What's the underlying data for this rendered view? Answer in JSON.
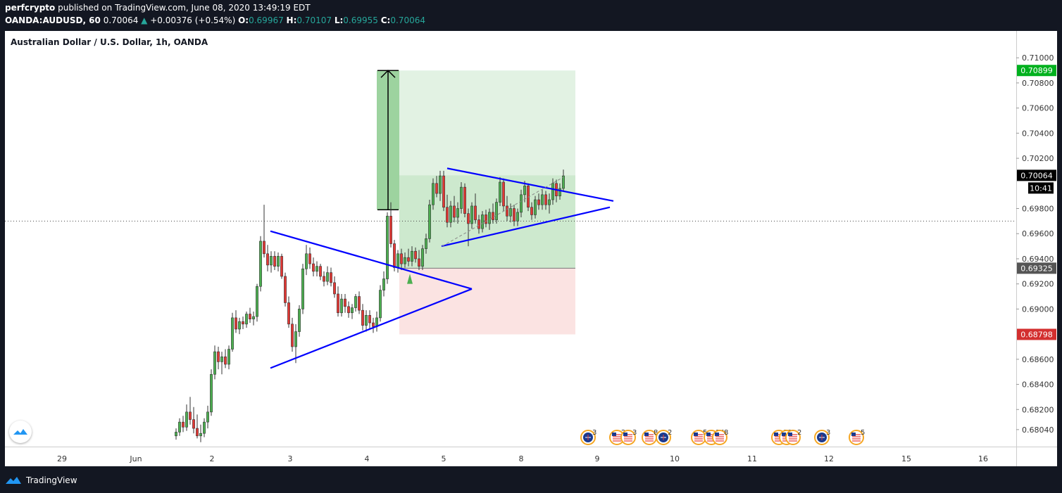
{
  "header": {
    "author": "perfcrypto",
    "published_text": "published on TradingView.com, June 08, 2020 13:49:19 EDT",
    "symbol": "OANDA:AUDUSD, 60",
    "last": "0.70064",
    "change": "+0.00376 (+0.54%)",
    "o_label": "O:",
    "o_value": "0.69967",
    "h_label": "H:",
    "h_value": "0.70107",
    "l_label": "L:",
    "l_value": "0.69955",
    "c_label": "C:",
    "c_value": "0.70064"
  },
  "footer": {
    "brand": "TradingView"
  },
  "colors": {
    "up": "#26a69a",
    "bull_candle": "#4caf50",
    "bear_candle": "#e53935",
    "trendline": "#0000ff",
    "target_label": "#00b11e",
    "stop_label": "#d32f2f",
    "entry_label": "#555555",
    "last_label": "#000000"
  },
  "chart_data": {
    "type": "candlestick",
    "title": "Australian Dollar / U.S. Dollar, 1h, OANDA",
    "x_ticks": [
      "29",
      "Jun",
      "2",
      "3",
      "4",
      "5",
      "8",
      "9",
      "10",
      "11",
      "12",
      "15",
      "16"
    ],
    "y_ticks": [
      "0.71000",
      "0.70800",
      "0.70600",
      "0.70400",
      "0.70200",
      "0.69800",
      "0.69600",
      "0.69400",
      "0.69200",
      "0.69000",
      "0.68600",
      "0.68400",
      "0.68200",
      "0.68040"
    ],
    "ylim": [
      0.68,
      0.7115
    ],
    "price_labels": {
      "target": "0.70899",
      "last": "0.70064",
      "countdown": "10:41",
      "entry": "0.69325",
      "stop": "0.68798"
    },
    "long_position": {
      "entry": 0.69325,
      "target": 0.70899,
      "stop": 0.68798
    },
    "candles": [
      {
        "o": 0.6799,
        "h": 0.6805,
        "l": 0.6796,
        "c": 0.6802
      },
      {
        "o": 0.6802,
        "h": 0.6813,
        "l": 0.6799,
        "c": 0.681
      },
      {
        "o": 0.681,
        "h": 0.6815,
        "l": 0.6802,
        "c": 0.6806
      },
      {
        "o": 0.6806,
        "h": 0.6824,
        "l": 0.6803,
        "c": 0.6818
      },
      {
        "o": 0.6818,
        "h": 0.683,
        "l": 0.6808,
        "c": 0.6812
      },
      {
        "o": 0.6812,
        "h": 0.6822,
        "l": 0.6801,
        "c": 0.6805
      },
      {
        "o": 0.6805,
        "h": 0.6816,
        "l": 0.6797,
        "c": 0.6799
      },
      {
        "o": 0.6799,
        "h": 0.6808,
        "l": 0.6794,
        "c": 0.6801
      },
      {
        "o": 0.6801,
        "h": 0.6813,
        "l": 0.6798,
        "c": 0.681
      },
      {
        "o": 0.681,
        "h": 0.6823,
        "l": 0.6805,
        "c": 0.6818
      },
      {
        "o": 0.6818,
        "h": 0.6852,
        "l": 0.6815,
        "c": 0.6848
      },
      {
        "o": 0.6848,
        "h": 0.6871,
        "l": 0.6844,
        "c": 0.6866
      },
      {
        "o": 0.6866,
        "h": 0.687,
        "l": 0.6852,
        "c": 0.6858
      },
      {
        "o": 0.6858,
        "h": 0.6866,
        "l": 0.6848,
        "c": 0.6862
      },
      {
        "o": 0.6862,
        "h": 0.6868,
        "l": 0.6853,
        "c": 0.6856
      },
      {
        "o": 0.6856,
        "h": 0.6871,
        "l": 0.6852,
        "c": 0.6868
      },
      {
        "o": 0.6868,
        "h": 0.6897,
        "l": 0.6866,
        "c": 0.6893
      },
      {
        "o": 0.6893,
        "h": 0.6899,
        "l": 0.6881,
        "c": 0.6884
      },
      {
        "o": 0.6884,
        "h": 0.6893,
        "l": 0.688,
        "c": 0.689
      },
      {
        "o": 0.689,
        "h": 0.6894,
        "l": 0.6884,
        "c": 0.6888
      },
      {
        "o": 0.6888,
        "h": 0.6898,
        "l": 0.6885,
        "c": 0.6896
      },
      {
        "o": 0.6896,
        "h": 0.6901,
        "l": 0.6889,
        "c": 0.6892
      },
      {
        "o": 0.6892,
        "h": 0.6898,
        "l": 0.6887,
        "c": 0.6894
      },
      {
        "o": 0.6894,
        "h": 0.692,
        "l": 0.689,
        "c": 0.6918
      },
      {
        "o": 0.6918,
        "h": 0.6958,
        "l": 0.6914,
        "c": 0.6954
      },
      {
        "o": 0.6954,
        "h": 0.6983,
        "l": 0.6941,
        "c": 0.6944
      },
      {
        "o": 0.6944,
        "h": 0.6951,
        "l": 0.693,
        "c": 0.6935
      },
      {
        "o": 0.6935,
        "h": 0.6946,
        "l": 0.6929,
        "c": 0.6942
      },
      {
        "o": 0.6942,
        "h": 0.6946,
        "l": 0.6931,
        "c": 0.6934
      },
      {
        "o": 0.6934,
        "h": 0.6945,
        "l": 0.693,
        "c": 0.6942
      },
      {
        "o": 0.6942,
        "h": 0.6944,
        "l": 0.6924,
        "c": 0.6926
      },
      {
        "o": 0.6926,
        "h": 0.6929,
        "l": 0.6902,
        "c": 0.6905
      },
      {
        "o": 0.6905,
        "h": 0.691,
        "l": 0.6885,
        "c": 0.6888
      },
      {
        "o": 0.6888,
        "h": 0.6893,
        "l": 0.6866,
        "c": 0.687
      },
      {
        "o": 0.687,
        "h": 0.6888,
        "l": 0.6857,
        "c": 0.6882
      },
      {
        "o": 0.6882,
        "h": 0.6903,
        "l": 0.6878,
        "c": 0.69
      },
      {
        "o": 0.69,
        "h": 0.6936,
        "l": 0.6896,
        "c": 0.6932
      },
      {
        "o": 0.6932,
        "h": 0.6951,
        "l": 0.6927,
        "c": 0.6944
      },
      {
        "o": 0.6944,
        "h": 0.6949,
        "l": 0.6932,
        "c": 0.6936
      },
      {
        "o": 0.6936,
        "h": 0.6941,
        "l": 0.6926,
        "c": 0.693
      },
      {
        "o": 0.693,
        "h": 0.6938,
        "l": 0.6926,
        "c": 0.6934
      },
      {
        "o": 0.6934,
        "h": 0.6936,
        "l": 0.6923,
        "c": 0.6926
      },
      {
        "o": 0.6926,
        "h": 0.693,
        "l": 0.6918,
        "c": 0.6922
      },
      {
        "o": 0.6922,
        "h": 0.6934,
        "l": 0.6919,
        "c": 0.6929
      },
      {
        "o": 0.6929,
        "h": 0.6933,
        "l": 0.6918,
        "c": 0.6921
      },
      {
        "o": 0.6921,
        "h": 0.6926,
        "l": 0.6909,
        "c": 0.6912
      },
      {
        "o": 0.6912,
        "h": 0.6918,
        "l": 0.6894,
        "c": 0.6897
      },
      {
        "o": 0.6897,
        "h": 0.6912,
        "l": 0.6894,
        "c": 0.6908
      },
      {
        "o": 0.6908,
        "h": 0.6912,
        "l": 0.6897,
        "c": 0.6902
      },
      {
        "o": 0.6902,
        "h": 0.6906,
        "l": 0.6893,
        "c": 0.6897
      },
      {
        "o": 0.6897,
        "h": 0.6904,
        "l": 0.6892,
        "c": 0.6901
      },
      {
        "o": 0.6901,
        "h": 0.6912,
        "l": 0.6898,
        "c": 0.691
      },
      {
        "o": 0.691,
        "h": 0.6914,
        "l": 0.6896,
        "c": 0.6899
      },
      {
        "o": 0.6899,
        "h": 0.6904,
        "l": 0.6883,
        "c": 0.6887
      },
      {
        "o": 0.6887,
        "h": 0.6899,
        "l": 0.6882,
        "c": 0.6895
      },
      {
        "o": 0.6895,
        "h": 0.6899,
        "l": 0.6884,
        "c": 0.6889
      },
      {
        "o": 0.6889,
        "h": 0.6893,
        "l": 0.6881,
        "c": 0.6886
      },
      {
        "o": 0.6886,
        "h": 0.6898,
        "l": 0.6882,
        "c": 0.6893
      },
      {
        "o": 0.6893,
        "h": 0.6919,
        "l": 0.689,
        "c": 0.6915
      },
      {
        "o": 0.6915,
        "h": 0.693,
        "l": 0.691,
        "c": 0.6924
      },
      {
        "o": 0.6924,
        "h": 0.6977,
        "l": 0.692,
        "c": 0.6974
      },
      {
        "o": 0.6974,
        "h": 0.6985,
        "l": 0.6949,
        "c": 0.6952
      },
      {
        "o": 0.6952,
        "h": 0.6955,
        "l": 0.693,
        "c": 0.6933
      },
      {
        "o": 0.6933,
        "h": 0.6947,
        "l": 0.6929,
        "c": 0.6944
      },
      {
        "o": 0.6944,
        "h": 0.6948,
        "l": 0.6931,
        "c": 0.6936
      },
      {
        "o": 0.6936,
        "h": 0.6945,
        "l": 0.6933,
        "c": 0.6941
      },
      {
        "o": 0.6941,
        "h": 0.6948,
        "l": 0.6934,
        "c": 0.6938
      },
      {
        "o": 0.6938,
        "h": 0.695,
        "l": 0.6934,
        "c": 0.6946
      },
      {
        "o": 0.6946,
        "h": 0.6949,
        "l": 0.6937,
        "c": 0.694
      },
      {
        "o": 0.694,
        "h": 0.6947,
        "l": 0.6931,
        "c": 0.6934
      },
      {
        "o": 0.6934,
        "h": 0.6951,
        "l": 0.6931,
        "c": 0.6948
      },
      {
        "o": 0.6948,
        "h": 0.696,
        "l": 0.6944,
        "c": 0.6956
      },
      {
        "o": 0.6956,
        "h": 0.6987,
        "l": 0.6953,
        "c": 0.6983
      },
      {
        "o": 0.6983,
        "h": 0.7004,
        "l": 0.6979,
        "c": 0.7
      },
      {
        "o": 0.7,
        "h": 0.7006,
        "l": 0.6989,
        "c": 0.6992
      },
      {
        "o": 0.6992,
        "h": 0.701,
        "l": 0.6986,
        "c": 0.7006
      },
      {
        "o": 0.7006,
        "h": 0.701,
        "l": 0.6978,
        "c": 0.6981
      },
      {
        "o": 0.6981,
        "h": 0.6991,
        "l": 0.6965,
        "c": 0.6969
      },
      {
        "o": 0.6969,
        "h": 0.6986,
        "l": 0.6965,
        "c": 0.6982
      },
      {
        "o": 0.6982,
        "h": 0.699,
        "l": 0.6969,
        "c": 0.6973
      },
      {
        "o": 0.6973,
        "h": 0.6985,
        "l": 0.6968,
        "c": 0.698
      },
      {
        "o": 0.698,
        "h": 0.7001,
        "l": 0.6976,
        "c": 0.6997
      },
      {
        "o": 0.6997,
        "h": 0.7,
        "l": 0.6973,
        "c": 0.6976
      },
      {
        "o": 0.6976,
        "h": 0.698,
        "l": 0.695,
        "c": 0.6968
      },
      {
        "o": 0.6968,
        "h": 0.6985,
        "l": 0.6964,
        "c": 0.6982
      },
      {
        "o": 0.6982,
        "h": 0.6992,
        "l": 0.6968,
        "c": 0.6971
      },
      {
        "o": 0.6971,
        "h": 0.6975,
        "l": 0.696,
        "c": 0.6964
      },
      {
        "o": 0.6964,
        "h": 0.6978,
        "l": 0.6961,
        "c": 0.6975
      },
      {
        "o": 0.6975,
        "h": 0.6979,
        "l": 0.6965,
        "c": 0.6968
      },
      {
        "o": 0.6968,
        "h": 0.698,
        "l": 0.6963,
        "c": 0.6977
      },
      {
        "o": 0.6977,
        "h": 0.6984,
        "l": 0.6968,
        "c": 0.6971
      },
      {
        "o": 0.6971,
        "h": 0.6988,
        "l": 0.6968,
        "c": 0.6985
      },
      {
        "o": 0.6985,
        "h": 0.7005,
        "l": 0.6982,
        "c": 0.7001
      },
      {
        "o": 0.7001,
        "h": 0.7004,
        "l": 0.6978,
        "c": 0.6982
      },
      {
        "o": 0.6982,
        "h": 0.699,
        "l": 0.697,
        "c": 0.6974
      },
      {
        "o": 0.6974,
        "h": 0.6984,
        "l": 0.6969,
        "c": 0.698
      },
      {
        "o": 0.698,
        "h": 0.6983,
        "l": 0.6966,
        "c": 0.697
      },
      {
        "o": 0.697,
        "h": 0.698,
        "l": 0.6966,
        "c": 0.6977
      },
      {
        "o": 0.6977,
        "h": 0.6995,
        "l": 0.6973,
        "c": 0.6991
      },
      {
        "o": 0.6991,
        "h": 0.7002,
        "l": 0.6985,
        "c": 0.6998
      },
      {
        "o": 0.6998,
        "h": 0.7,
        "l": 0.6978,
        "c": 0.6981
      },
      {
        "o": 0.6981,
        "h": 0.6985,
        "l": 0.6971,
        "c": 0.6975
      },
      {
        "o": 0.6975,
        "h": 0.699,
        "l": 0.6972,
        "c": 0.6987
      },
      {
        "o": 0.6987,
        "h": 0.6992,
        "l": 0.6979,
        "c": 0.6983
      },
      {
        "o": 0.6983,
        "h": 0.6995,
        "l": 0.6979,
        "c": 0.6991
      },
      {
        "o": 0.6991,
        "h": 0.6994,
        "l": 0.6979,
        "c": 0.6983
      },
      {
        "o": 0.6983,
        "h": 0.6992,
        "l": 0.6976,
        "c": 0.6987
      },
      {
        "o": 0.6987,
        "h": 0.7004,
        "l": 0.6983,
        "c": 0.7
      },
      {
        "o": 0.7,
        "h": 0.7003,
        "l": 0.6985,
        "c": 0.699
      },
      {
        "o": 0.699,
        "h": 0.7,
        "l": 0.6987,
        "c": 0.6996
      },
      {
        "o": 0.6996,
        "h": 0.7011,
        "l": 0.6994,
        "c": 0.7006
      }
    ],
    "annotations": {
      "calendar_event_labels": [
        "3",
        "2",
        "3",
        "8",
        "2",
        "5",
        "14",
        "8",
        "33",
        "2",
        "2",
        "3",
        "5"
      ]
    }
  }
}
